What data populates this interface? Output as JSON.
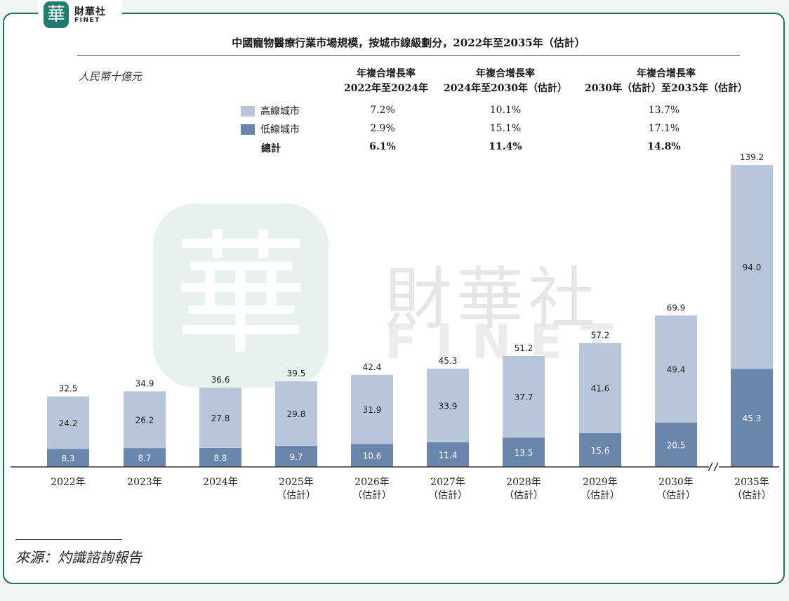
{
  "brand": {
    "seal_char": "華",
    "name_cn": "財華社",
    "name_en": "FINET"
  },
  "watermark": {
    "seal_char": "華",
    "name_cn": "財華社",
    "name_en": "FINET"
  },
  "colors": {
    "high_tier": "#b8c6da",
    "low_tier": "#6b86ad",
    "frame": "#1f6d68"
  },
  "chart_data": {
    "type": "bar",
    "stacked": true,
    "title": "中國寵物醫療行業市場規模，按城市線級劃分，2022年至2035年（估計）",
    "unit_label": "人民幣十億元",
    "categories": [
      [
        "2022年"
      ],
      [
        "2023年"
      ],
      [
        "2024年"
      ],
      [
        "2025年",
        "（估計）"
      ],
      [
        "2026年",
        "（估計）"
      ],
      [
        "2027年",
        "（估計）"
      ],
      [
        "2028年",
        "（估計）"
      ],
      [
        "2029年",
        "（估計）"
      ],
      [
        "2030年",
        "（估計）"
      ],
      [
        "2035年",
        "（估計）"
      ]
    ],
    "axis_break_before_index": 9,
    "series": [
      {
        "name": "低線城市",
        "color": "#6b86ad",
        "values": [
          "8.3",
          "8.7",
          "8.8",
          "9.7",
          "10.6",
          "11.4",
          "13.5",
          "15.6",
          "20.5",
          "45.3"
        ]
      },
      {
        "name": "高線城市",
        "color": "#b8c6da",
        "values": [
          "24.2",
          "26.2",
          "27.8",
          "29.8",
          "31.9",
          "33.9",
          "37.7",
          "41.6",
          "49.4",
          "94.0"
        ]
      }
    ],
    "totals": [
      "32.5",
      "34.9",
      "36.6",
      "39.5",
      "42.4",
      "45.3",
      "51.2",
      "57.2",
      "69.9",
      "139.2"
    ],
    "ylim": [
      0,
      140
    ],
    "grid": false,
    "cagr_table": {
      "headers": [
        [
          "年複合增長率",
          "2022年至2024年"
        ],
        [
          "年複合增長率",
          "2024年至2030年（估計）"
        ],
        [
          "年複合增長率",
          "2030年（估計）至2035年（估計）"
        ]
      ],
      "rows": [
        {
          "label": "高線城市",
          "color": "#b8c6da",
          "rates": [
            "7.2%",
            "10.1%",
            "13.7%"
          ]
        },
        {
          "label": "低線城市",
          "color": "#6b86ad",
          "rates": [
            "2.9%",
            "15.1%",
            "17.1%"
          ]
        },
        {
          "label": "總計",
          "bold": true,
          "rates": [
            "6.1%",
            "11.4%",
            "14.8%"
          ]
        }
      ]
    }
  },
  "source": "來源：灼識諮詢報告"
}
